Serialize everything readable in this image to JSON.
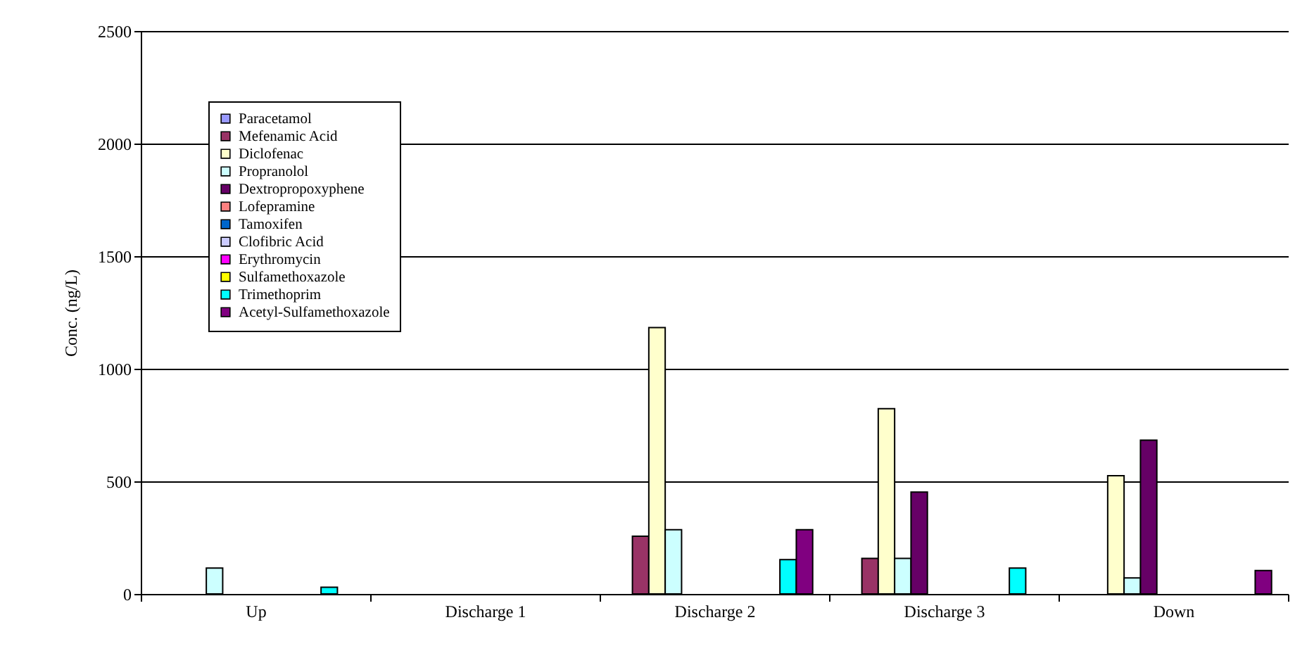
{
  "chart_data": {
    "type": "bar",
    "ylabel": "Conc. (ng/L)",
    "categories": [
      "Up",
      "Discharge 1",
      "Discharge 2",
      "Discharge 3",
      "Down"
    ],
    "ylim": [
      0,
      2500
    ],
    "yticks": [
      0,
      500,
      1000,
      1500,
      2000,
      2500
    ],
    "grid": "y",
    "legend": "top left",
    "series": [
      {
        "name": "Paracetamol",
        "color": "#9999ff",
        "values": [
          null,
          null,
          null,
          null,
          null
        ]
      },
      {
        "name": "Mefenamic Acid",
        "color": "#993366",
        "values": [
          null,
          null,
          256,
          158,
          null
        ]
      },
      {
        "name": "Diclofenac",
        "color": "#ffffcc",
        "values": [
          null,
          null,
          1183,
          823,
          525
        ]
      },
      {
        "name": "Propranolol",
        "color": "#ccffff",
        "values": [
          115,
          null,
          285,
          158,
          71
        ]
      },
      {
        "name": "Dextropropoxyphene",
        "color": "#660066",
        "values": [
          null,
          null,
          null,
          452,
          683
        ]
      },
      {
        "name": "Lofepramine",
        "color": "#ff8080",
        "values": [
          null,
          null,
          null,
          null,
          null
        ]
      },
      {
        "name": "Tamoxifen",
        "color": "#0066cc",
        "values": [
          null,
          null,
          null,
          null,
          null
        ]
      },
      {
        "name": "Clofibric Acid",
        "color": "#ccccff",
        "values": [
          null,
          null,
          null,
          null,
          null
        ]
      },
      {
        "name": "Erythromycin",
        "color": "#ff00ff",
        "values": [
          null,
          null,
          null,
          null,
          null
        ]
      },
      {
        "name": "Sulfamethoxazole",
        "color": "#ffff00",
        "values": [
          null,
          null,
          null,
          null,
          null
        ]
      },
      {
        "name": "Trimethoprim",
        "color": "#00ffff",
        "values": [
          30,
          null,
          152,
          115,
          null
        ]
      },
      {
        "name": "Acetyl-Sulfamethoxazole",
        "color": "#800080",
        "values": [
          null,
          null,
          285,
          null,
          104
        ]
      }
    ]
  }
}
